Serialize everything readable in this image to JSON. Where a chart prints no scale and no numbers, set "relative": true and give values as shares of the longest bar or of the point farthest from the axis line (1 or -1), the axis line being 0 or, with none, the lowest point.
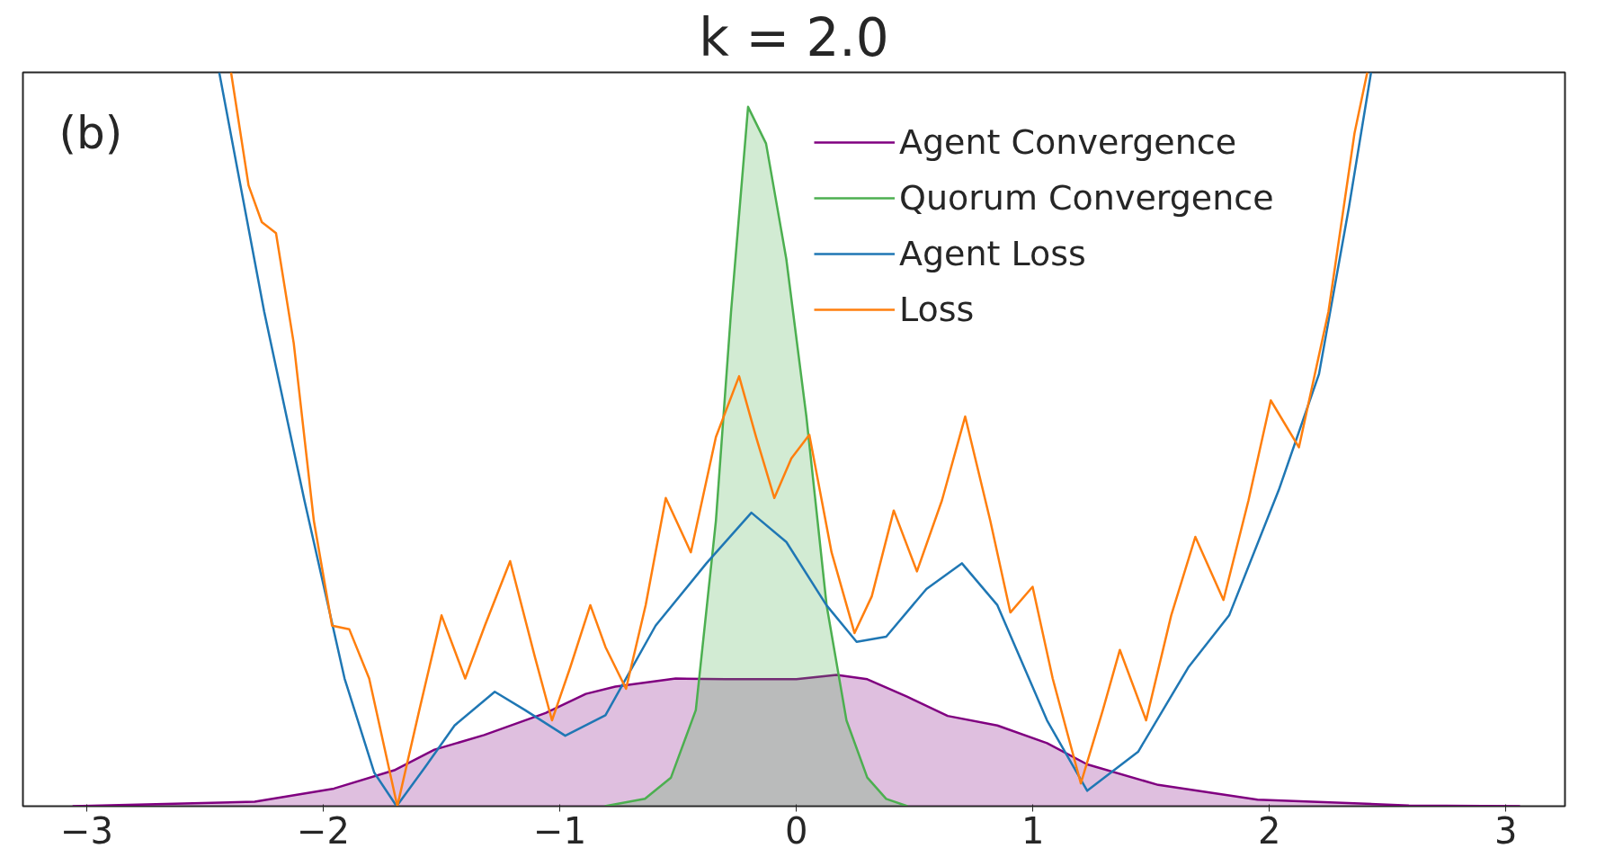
{
  "chart_data": {
    "type": "line",
    "title": "k = 2.0",
    "relative": true,
    "annotations": [
      "(b)"
    ],
    "legend": "top right",
    "grid": false,
    "xlim": [
      -3.27,
      3.25
    ],
    "xticks": [
      {
        "value": -3,
        "label": "−3"
      },
      {
        "value": -2,
        "label": "−2"
      },
      {
        "value": -1,
        "label": "−1"
      },
      0,
      1,
      2,
      3
    ],
    "series": [
      {
        "name": "Agent Convergence",
        "type": "area",
        "color": "#800080",
        "x": [
          -3.06,
          -2.29,
          -1.955,
          -1.7,
          -1.53,
          -1.32,
          -1.06,
          -0.89,
          -0.765,
          -0.51,
          -0.3,
          0,
          0.17,
          0.3,
          0.47,
          0.64,
          0.85,
          1.06,
          1.23,
          1.53,
          1.95,
          2.59,
          3.06
        ],
        "values": [
          0,
          0.006,
          0.024,
          0.049,
          0.077,
          0.097,
          0.127,
          0.153,
          0.163,
          0.174,
          0.173,
          0.173,
          0.179,
          0.173,
          0.149,
          0.123,
          0.11,
          0.086,
          0.057,
          0.029,
          0.009,
          0.001,
          0
        ]
      },
      {
        "name": "Quorum Convergence",
        "type": "area",
        "color": "#4caf50",
        "x": [
          -0.81,
          -0.64,
          -0.53,
          -0.425,
          -0.34,
          -0.276,
          -0.204,
          -0.128,
          -0.0425,
          0.0425,
          0.128,
          0.212,
          0.3,
          0.38,
          0.47
        ],
        "values": [
          0,
          0.01,
          0.039,
          0.131,
          0.389,
          0.674,
          0.953,
          0.903,
          0.746,
          0.531,
          0.274,
          0.117,
          0.039,
          0.01,
          0
        ]
      },
      {
        "name": "Agent Loss",
        "color": "#1f77b4",
        "x": [
          -2.44,
          -2.25,
          -2.08,
          -1.91,
          -1.785,
          -1.69,
          -1.57,
          -1.445,
          -1.275,
          -1.147,
          -0.977,
          -0.807,
          -0.595,
          -0.38,
          -0.19,
          -0.042,
          0.127,
          0.255,
          0.38,
          0.55,
          0.7,
          0.85,
          1.06,
          1.23,
          1.445,
          1.657,
          1.83,
          2.04,
          2.21,
          2.337,
          2.43
        ],
        "values": [
          1.0,
          0.674,
          0.417,
          0.174,
          0.046,
          0,
          0.053,
          0.11,
          0.156,
          0.131,
          0.096,
          0.124,
          0.246,
          0.331,
          0.4,
          0.36,
          0.274,
          0.224,
          0.231,
          0.296,
          0.331,
          0.274,
          0.117,
          0.021,
          0.074,
          0.189,
          0.26,
          0.431,
          0.589,
          0.817,
          1.0
        ]
      },
      {
        "name": "Loss",
        "color": "#ff7f0e",
        "x": [
          -2.39,
          -2.316,
          -2.26,
          -2.2,
          -2.125,
          -2.04,
          -1.963,
          -1.89,
          -1.806,
          -1.687,
          -1.594,
          -1.5,
          -1.4,
          -1.317,
          -1.21,
          -1.105,
          -1.033,
          -0.956,
          -0.871,
          -0.807,
          -0.72,
          -0.637,
          -0.552,
          -0.446,
          -0.34,
          -0.242,
          -0.17,
          -0.093,
          -0.021,
          0.055,
          0.149,
          0.246,
          0.319,
          0.412,
          0.51,
          0.616,
          0.714,
          0.82,
          0.905,
          0.999,
          1.084,
          1.203,
          1.296,
          1.368,
          1.479,
          1.585,
          1.687,
          1.806,
          1.912,
          2.006,
          2.125,
          2.25,
          2.36,
          2.414
        ],
        "values": [
          1.0,
          0.846,
          0.796,
          0.781,
          0.631,
          0.389,
          0.246,
          0.241,
          0.174,
          0,
          0.131,
          0.26,
          0.174,
          0.246,
          0.334,
          0.203,
          0.117,
          0.189,
          0.274,
          0.217,
          0.16,
          0.274,
          0.42,
          0.346,
          0.503,
          0.586,
          0.503,
          0.42,
          0.474,
          0.506,
          0.346,
          0.236,
          0.286,
          0.403,
          0.32,
          0.417,
          0.531,
          0.389,
          0.264,
          0.299,
          0.174,
          0.031,
          0.131,
          0.213,
          0.117,
          0.26,
          0.367,
          0.281,
          0.417,
          0.553,
          0.489,
          0.674,
          0.917,
          1.0
        ]
      }
    ]
  }
}
